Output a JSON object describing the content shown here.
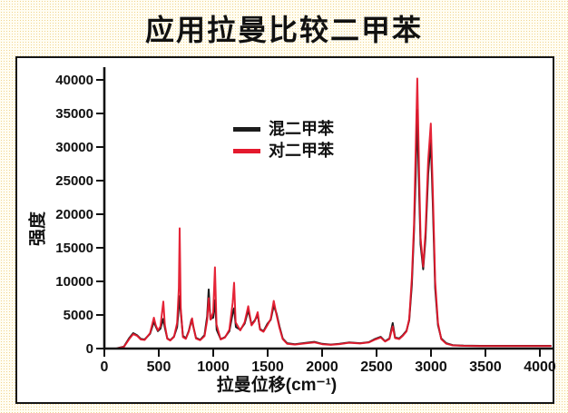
{
  "title": "应用拉曼比较二甲苯",
  "colors": {
    "page_dot": "#f1d48c",
    "chart_border": "#151515",
    "axis": "#111111",
    "text": "#111111"
  },
  "chart_data": {
    "type": "line",
    "title": "应用拉曼比较二甲苯",
    "xlabel": "拉曼位移(cm⁻¹)",
    "ylabel": "强度",
    "xlim": [
      0,
      4000
    ],
    "ylim": [
      0,
      40000
    ],
    "x_ticks": [
      0,
      500,
      1000,
      1500,
      2000,
      2500,
      3000,
      3500,
      4000
    ],
    "y_ticks": [
      0,
      5000,
      10000,
      15000,
      20000,
      25000,
      30000,
      35000,
      40000
    ],
    "grid": false,
    "legend_position": "inside-top-center",
    "series": [
      {
        "name": "混二甲苯",
        "color": "#1c1c1c",
        "points": [
          [
            120,
            50
          ],
          [
            180,
            300
          ],
          [
            230,
            1600
          ],
          [
            265,
            2300
          ],
          [
            300,
            2000
          ],
          [
            335,
            1450
          ],
          [
            370,
            1350
          ],
          [
            420,
            2200
          ],
          [
            455,
            4000
          ],
          [
            472,
            3300
          ],
          [
            492,
            2600
          ],
          [
            515,
            2950
          ],
          [
            540,
            4400
          ],
          [
            556,
            3100
          ],
          [
            578,
            1500
          ],
          [
            605,
            1250
          ],
          [
            640,
            1800
          ],
          [
            668,
            3200
          ],
          [
            684,
            6200
          ],
          [
            692,
            7800
          ],
          [
            703,
            5200
          ],
          [
            722,
            1900
          ],
          [
            748,
            1500
          ],
          [
            775,
            2600
          ],
          [
            800,
            4300
          ],
          [
            815,
            3400
          ],
          [
            842,
            1600
          ],
          [
            880,
            1300
          ],
          [
            920,
            2000
          ],
          [
            944,
            4800
          ],
          [
            958,
            8800
          ],
          [
            974,
            4400
          ],
          [
            1000,
            4600
          ],
          [
            1016,
            7200
          ],
          [
            1032,
            2800
          ],
          [
            1068,
            1400
          ],
          [
            1108,
            1700
          ],
          [
            1148,
            2600
          ],
          [
            1178,
            5200
          ],
          [
            1192,
            6000
          ],
          [
            1208,
            3200
          ],
          [
            1248,
            2800
          ],
          [
            1288,
            3700
          ],
          [
            1322,
            5700
          ],
          [
            1352,
            3600
          ],
          [
            1382,
            4200
          ],
          [
            1408,
            5000
          ],
          [
            1430,
            2900
          ],
          [
            1462,
            2600
          ],
          [
            1498,
            3700
          ],
          [
            1528,
            4300
          ],
          [
            1556,
            6400
          ],
          [
            1582,
            5200
          ],
          [
            1608,
            3300
          ],
          [
            1638,
            1500
          ],
          [
            1678,
            800
          ],
          [
            1750,
            650
          ],
          [
            1848,
            850
          ],
          [
            1928,
            1000
          ],
          [
            2000,
            700
          ],
          [
            2080,
            600
          ],
          [
            2160,
            700
          ],
          [
            2248,
            900
          ],
          [
            2348,
            800
          ],
          [
            2428,
            950
          ],
          [
            2488,
            1450
          ],
          [
            2538,
            1750
          ],
          [
            2578,
            1100
          ],
          [
            2618,
            1500
          ],
          [
            2648,
            3800
          ],
          [
            2670,
            1650
          ],
          [
            2708,
            1500
          ],
          [
            2742,
            2000
          ],
          [
            2775,
            2650
          ],
          [
            2800,
            4200
          ],
          [
            2824,
            9500
          ],
          [
            2844,
            17500
          ],
          [
            2860,
            26000
          ],
          [
            2874,
            35500
          ],
          [
            2888,
            25000
          ],
          [
            2904,
            15500
          ],
          [
            2928,
            11800
          ],
          [
            2950,
            16500
          ],
          [
            2974,
            26000
          ],
          [
            2998,
            31000
          ],
          [
            3016,
            22000
          ],
          [
            3038,
            9000
          ],
          [
            3064,
            3500
          ],
          [
            3094,
            1500
          ],
          [
            3140,
            800
          ],
          [
            3200,
            520
          ],
          [
            3300,
            430
          ],
          [
            3450,
            400
          ],
          [
            3600,
            400
          ],
          [
            3800,
            400
          ],
          [
            4000,
            400
          ],
          [
            4100,
            400
          ]
        ]
      },
      {
        "name": "对二甲苯",
        "color": "#e4192d",
        "points": [
          [
            120,
            40
          ],
          [
            180,
            260
          ],
          [
            230,
            1450
          ],
          [
            265,
            2150
          ],
          [
            300,
            1900
          ],
          [
            335,
            1350
          ],
          [
            370,
            1280
          ],
          [
            420,
            2300
          ],
          [
            455,
            4600
          ],
          [
            472,
            3500
          ],
          [
            492,
            2700
          ],
          [
            515,
            3300
          ],
          [
            542,
            7000
          ],
          [
            556,
            3500
          ],
          [
            578,
            1450
          ],
          [
            605,
            1200
          ],
          [
            640,
            1750
          ],
          [
            668,
            3800
          ],
          [
            684,
            9000
          ],
          [
            692,
            17900
          ],
          [
            702,
            6000
          ],
          [
            722,
            1700
          ],
          [
            748,
            1450
          ],
          [
            775,
            2500
          ],
          [
            806,
            4500
          ],
          [
            820,
            3100
          ],
          [
            842,
            1500
          ],
          [
            880,
            1250
          ],
          [
            920,
            1850
          ],
          [
            944,
            4200
          ],
          [
            958,
            7500
          ],
          [
            976,
            4300
          ],
          [
            1000,
            5400
          ],
          [
            1016,
            12100
          ],
          [
            1030,
            3600
          ],
          [
            1068,
            1350
          ],
          [
            1108,
            1650
          ],
          [
            1148,
            2800
          ],
          [
            1178,
            6800
          ],
          [
            1192,
            9800
          ],
          [
            1206,
            3900
          ],
          [
            1248,
            2700
          ],
          [
            1288,
            3900
          ],
          [
            1322,
            6300
          ],
          [
            1352,
            3450
          ],
          [
            1382,
            4100
          ],
          [
            1408,
            5400
          ],
          [
            1430,
            2800
          ],
          [
            1462,
            2500
          ],
          [
            1498,
            3500
          ],
          [
            1528,
            4400
          ],
          [
            1556,
            7100
          ],
          [
            1582,
            5000
          ],
          [
            1608,
            3100
          ],
          [
            1638,
            1400
          ],
          [
            1678,
            720
          ],
          [
            1750,
            600
          ],
          [
            1848,
            780
          ],
          [
            1928,
            920
          ],
          [
            2000,
            650
          ],
          [
            2080,
            560
          ],
          [
            2160,
            660
          ],
          [
            2248,
            860
          ],
          [
            2348,
            760
          ],
          [
            2428,
            900
          ],
          [
            2488,
            1350
          ],
          [
            2538,
            1650
          ],
          [
            2578,
            1050
          ],
          [
            2618,
            1420
          ],
          [
            2648,
            3300
          ],
          [
            2670,
            1550
          ],
          [
            2708,
            1420
          ],
          [
            2742,
            1900
          ],
          [
            2775,
            2550
          ],
          [
            2800,
            4400
          ],
          [
            2824,
            10500
          ],
          [
            2844,
            18500
          ],
          [
            2860,
            30000
          ],
          [
            2874,
            40200
          ],
          [
            2890,
            27000
          ],
          [
            2904,
            16500
          ],
          [
            2928,
            12200
          ],
          [
            2950,
            17500
          ],
          [
            2974,
            28000
          ],
          [
            2998,
            33500
          ],
          [
            3016,
            24000
          ],
          [
            3038,
            10000
          ],
          [
            3064,
            3800
          ],
          [
            3094,
            1400
          ],
          [
            3140,
            720
          ],
          [
            3200,
            470
          ],
          [
            3300,
            400
          ],
          [
            3450,
            370
          ],
          [
            3600,
            370
          ],
          [
            3800,
            370
          ],
          [
            4000,
            370
          ],
          [
            4100,
            370
          ]
        ]
      }
    ]
  }
}
